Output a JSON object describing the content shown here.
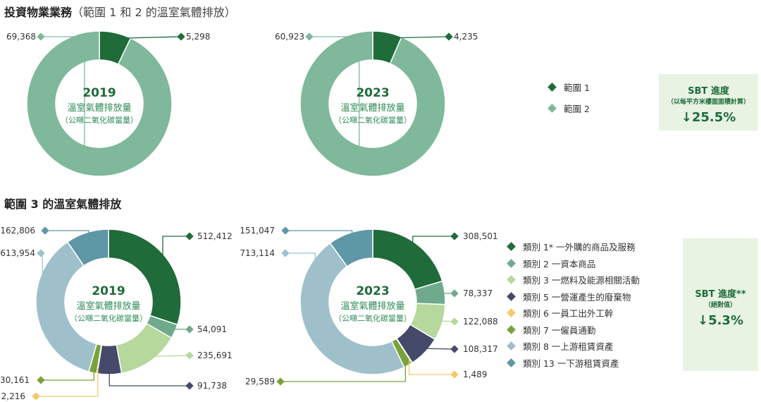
{
  "titles": {
    "scope12_main": "投資物業業務",
    "scope12_sub": "（範圍 1 和 2 的溫室氣體排放）",
    "scope3": "範圍 3 的溫室氣體排放"
  },
  "center_text": {
    "line1": "溫室氣體排放量",
    "line2": "（公噸二氧化碳當量）"
  },
  "legend_scope12": [
    {
      "label": "範圍 1",
      "color": "#1f6b3a"
    },
    {
      "label": "範圍 2",
      "color": "#7fb89a"
    }
  ],
  "legend_scope3": [
    {
      "label": "類別 1* 一外購的商品及服務",
      "color": "#1f6b3a"
    },
    {
      "label": "類別 2 一資本商品",
      "color": "#6faa8c"
    },
    {
      "label": "類別 3 一燃料及能源相關活動",
      "color": "#b6d89c"
    },
    {
      "label": "類別 5 一營運產生的廢棄物",
      "color": "#454a6b"
    },
    {
      "label": "類別 6 一員工出外工幹",
      "color": "#f7c86b"
    },
    {
      "label": "類別 7 一僱員通勤",
      "color": "#79a33a"
    },
    {
      "label": "類別 8 一上游租賃資產",
      "color": "#9fc0cb"
    },
    {
      "label": "類別 13 一下游租賃資產",
      "color": "#5e97a5"
    }
  ],
  "sbt_scope12": {
    "title": "SBT 進度",
    "subtitle": "（以每平方米樓面面積計算）",
    "value": "↓25.5%"
  },
  "sbt_scope3": {
    "title": "SBT 進度**",
    "subtitle": "（絕對值）",
    "value": "↓5.3%"
  },
  "chart_data": [
    {
      "type": "pie",
      "subtype": "donut",
      "title": "2019",
      "categories": [
        "範圍 1",
        "範圍 2"
      ],
      "values": [
        5298,
        69368
      ],
      "labels": [
        "5,298",
        "69,368"
      ]
    },
    {
      "type": "pie",
      "subtype": "donut",
      "title": "2023",
      "categories": [
        "範圍 1",
        "範圍 2"
      ],
      "values": [
        4235,
        60923
      ],
      "labels": [
        "4,235",
        "60,923"
      ]
    },
    {
      "type": "pie",
      "subtype": "donut",
      "title": "2019",
      "categories": [
        "類別 1*",
        "類別 2",
        "類別 3",
        "類別 5",
        "類別 6",
        "類別 7",
        "類別 8",
        "類別 13"
      ],
      "values": [
        512412,
        54091,
        235691,
        91738,
        2216,
        30161,
        613954,
        162806
      ],
      "labels": [
        "512,412",
        "54,091",
        "235,691",
        "91,738",
        "2,216",
        "30,161",
        "613,954",
        "162,806"
      ]
    },
    {
      "type": "pie",
      "subtype": "donut",
      "title": "2023",
      "categories": [
        "類別 1*",
        "類別 2",
        "類別 3",
        "類別 5",
        "類別 6",
        "類別 7",
        "類別 8",
        "類別 13"
      ],
      "values": [
        308501,
        78337,
        122088,
        108317,
        1489,
        29589,
        713114,
        151047
      ],
      "labels": [
        "308,501",
        "78,337",
        "122,088",
        "108,317",
        "1,489",
        "29,589",
        "713,114",
        "151,047"
      ]
    }
  ]
}
